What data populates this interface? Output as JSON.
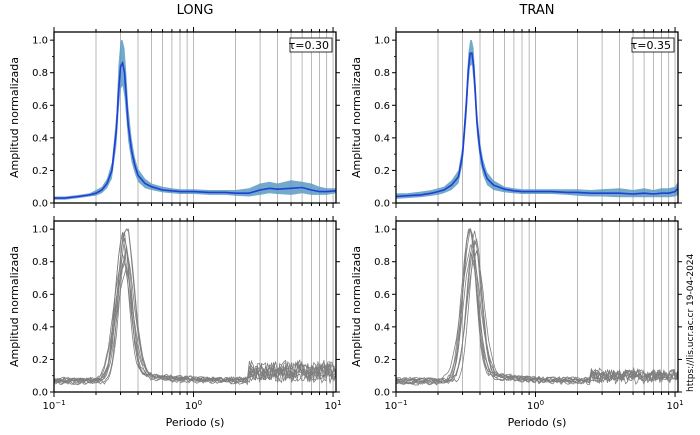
{
  "chart_data": [
    {
      "type": "line",
      "panel": "top-left",
      "title": "LONG",
      "ylabel": "Amplitud normalizada",
      "xscale": "log",
      "xlim": [
        0.1,
        10.5
      ],
      "ylim": [
        0.0,
        1.05
      ],
      "yticks": [
        "0.0",
        "0.2",
        "0.4",
        "0.6",
        "0.8",
        "1.0"
      ],
      "annotation": "τ=0.30",
      "series_color": "#1f3fd6",
      "band_color": "#5b9bc2",
      "mean": {
        "x": [
          0.1,
          0.12,
          0.15,
          0.18,
          0.2,
          0.22,
          0.24,
          0.26,
          0.28,
          0.29,
          0.3,
          0.31,
          0.32,
          0.33,
          0.34,
          0.36,
          0.38,
          0.4,
          0.45,
          0.5,
          0.6,
          0.7,
          0.8,
          1.0,
          1.3,
          1.7,
          2.0,
          2.5,
          3.0,
          3.5,
          4.0,
          5.0,
          6.0,
          7.0,
          8.0,
          9.0,
          10.5
        ],
        "y": [
          0.03,
          0.03,
          0.04,
          0.05,
          0.06,
          0.08,
          0.12,
          0.2,
          0.45,
          0.68,
          0.84,
          0.86,
          0.8,
          0.65,
          0.48,
          0.32,
          0.23,
          0.17,
          0.12,
          0.1,
          0.08,
          0.075,
          0.07,
          0.07,
          0.065,
          0.065,
          0.06,
          0.06,
          0.08,
          0.09,
          0.085,
          0.09,
          0.095,
          0.08,
          0.07,
          0.07,
          0.075
        ]
      },
      "band_upper": [
        0.04,
        0.04,
        0.05,
        0.06,
        0.08,
        0.1,
        0.15,
        0.25,
        0.55,
        0.85,
        1.0,
        1.0,
        0.95,
        0.8,
        0.6,
        0.4,
        0.28,
        0.21,
        0.15,
        0.12,
        0.1,
        0.09,
        0.085,
        0.085,
        0.08,
        0.08,
        0.08,
        0.09,
        0.12,
        0.13,
        0.12,
        0.14,
        0.13,
        0.12,
        0.1,
        0.09,
        0.09
      ],
      "band_lower": [
        0.02,
        0.02,
        0.03,
        0.04,
        0.045,
        0.06,
        0.09,
        0.15,
        0.35,
        0.55,
        0.7,
        0.72,
        0.65,
        0.52,
        0.38,
        0.25,
        0.18,
        0.13,
        0.09,
        0.08,
        0.065,
        0.06,
        0.055,
        0.055,
        0.05,
        0.05,
        0.045,
        0.04,
        0.05,
        0.06,
        0.055,
        0.05,
        0.06,
        0.05,
        0.05,
        0.05,
        0.06
      ]
    },
    {
      "type": "line",
      "panel": "top-right",
      "title": "TRAN",
      "ylabel": "Amplitud normalizada",
      "xscale": "log",
      "xlim": [
        0.1,
        10.5
      ],
      "ylim": [
        0.0,
        1.05
      ],
      "yticks": [
        "0.0",
        "0.2",
        "0.4",
        "0.6",
        "0.8",
        "1.0"
      ],
      "annotation": "τ=0.35",
      "series_color": "#1f3fd6",
      "band_color": "#5b9bc2",
      "mean": {
        "x": [
          0.1,
          0.12,
          0.15,
          0.18,
          0.2,
          0.22,
          0.25,
          0.28,
          0.3,
          0.32,
          0.33,
          0.34,
          0.35,
          0.36,
          0.37,
          0.38,
          0.4,
          0.42,
          0.45,
          0.5,
          0.6,
          0.7,
          0.8,
          1.0,
          1.3,
          1.7,
          2.0,
          2.5,
          3.0,
          4.0,
          5.0,
          6.0,
          7.0,
          8.0,
          9.0,
          10.0,
          10.5
        ],
        "y": [
          0.04,
          0.045,
          0.05,
          0.06,
          0.07,
          0.08,
          0.11,
          0.16,
          0.3,
          0.62,
          0.82,
          0.92,
          0.92,
          0.84,
          0.68,
          0.5,
          0.32,
          0.22,
          0.15,
          0.11,
          0.085,
          0.075,
          0.07,
          0.07,
          0.07,
          0.065,
          0.065,
          0.06,
          0.06,
          0.06,
          0.055,
          0.06,
          0.055,
          0.06,
          0.06,
          0.07,
          0.09
        ]
      },
      "band_upper": [
        0.06,
        0.06,
        0.07,
        0.08,
        0.09,
        0.1,
        0.14,
        0.2,
        0.36,
        0.72,
        0.92,
        1.0,
        1.0,
        0.95,
        0.78,
        0.58,
        0.38,
        0.27,
        0.19,
        0.14,
        0.1,
        0.09,
        0.085,
        0.085,
        0.085,
        0.085,
        0.085,
        0.08,
        0.085,
        0.09,
        0.08,
        0.09,
        0.08,
        0.09,
        0.09,
        0.1,
        0.13
      ],
      "band_lower": [
        0.025,
        0.03,
        0.035,
        0.045,
        0.05,
        0.06,
        0.08,
        0.12,
        0.24,
        0.52,
        0.72,
        0.84,
        0.85,
        0.74,
        0.58,
        0.42,
        0.26,
        0.17,
        0.11,
        0.08,
        0.065,
        0.06,
        0.055,
        0.055,
        0.055,
        0.05,
        0.045,
        0.04,
        0.04,
        0.035,
        0.035,
        0.035,
        0.035,
        0.035,
        0.035,
        0.04,
        0.05
      ]
    },
    {
      "type": "line",
      "panel": "bottom-left",
      "ylabel": "Amplitud normalizada",
      "xlabel": "Periodo (s)",
      "xscale": "log",
      "xlim": [
        0.1,
        10.5
      ],
      "ylim": [
        0.0,
        1.05
      ],
      "xticks": [
        "10",
        "10",
        "10"
      ],
      "xtick_exponents": [
        "−1",
        "0",
        "1"
      ],
      "yticks": [
        "0.0",
        "0.2",
        "0.4",
        "0.6",
        "0.8",
        "1.0"
      ],
      "line_color": "#7f7f7f",
      "peak_period": 0.31,
      "individual_records": 10,
      "peak_amplitudes": [
        1.0,
        0.98,
        0.96,
        0.92,
        0.88,
        0.85,
        0.82,
        0.78,
        0.75,
        0.72
      ]
    },
    {
      "type": "line",
      "panel": "bottom-right",
      "xlabel": "Periodo (s)",
      "ylabel": "Amplitud normalizada",
      "xscale": "log",
      "xlim": [
        0.1,
        10.5
      ],
      "ylim": [
        0.0,
        1.05
      ],
      "xticks": [
        "10",
        "10",
        "10"
      ],
      "xtick_exponents": [
        "−1",
        "0",
        "1"
      ],
      "yticks": [
        "0.0",
        "0.2",
        "0.4",
        "0.6",
        "0.8",
        "1.0"
      ],
      "line_color": "#7f7f7f",
      "peak_period": 0.35,
      "individual_records": 10,
      "peak_amplitudes": [
        1.0,
        0.99,
        0.97,
        0.95,
        0.93,
        0.9,
        0.88,
        0.85,
        0.82,
        0.8
      ]
    }
  ],
  "watermark": "https://lis.ucr.ac.cr 19-04-2024"
}
